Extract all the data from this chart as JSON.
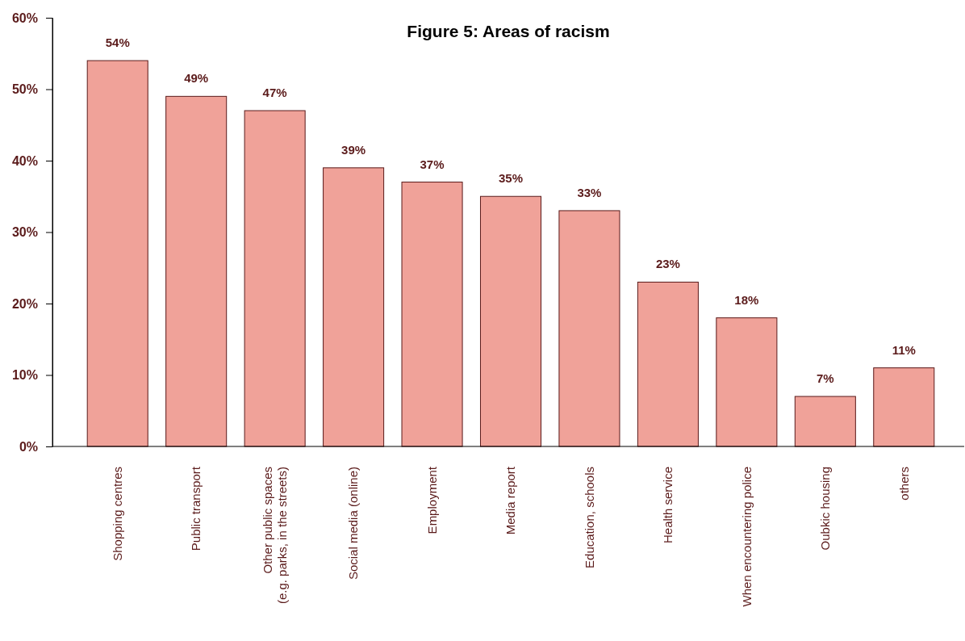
{
  "chart_data": {
    "type": "bar",
    "title": "Figure 5: Areas of racism",
    "categories": [
      "Shopping centres",
      "Public transport",
      "Other public spaces\n(e.g. parks, in the streets)",
      "Social media (online)",
      "Employment",
      "Media report",
      "Education, schools",
      "Health service",
      "When encountering police",
      "Oubkic housing",
      "others"
    ],
    "values": [
      54,
      49,
      47,
      39,
      37,
      35,
      33,
      23,
      18,
      7,
      11
    ],
    "value_labels": [
      "54%",
      "49%",
      "47%",
      "39%",
      "37%",
      "35%",
      "33%",
      "23%",
      "18%",
      "7%",
      "11%"
    ],
    "color": "#f0a299",
    "ylim": [
      0,
      60
    ],
    "yticks": [
      {
        "value": 0,
        "label": "0%"
      },
      {
        "value": 10,
        "label": "10%"
      },
      {
        "value": 20,
        "label": "20%"
      },
      {
        "value": 30,
        "label": "30%"
      },
      {
        "value": 40,
        "label": "40%"
      },
      {
        "value": 50,
        "label": "50%"
      },
      {
        "value": 60,
        "label": "60%"
      }
    ],
    "grid": false,
    "legend": false
  }
}
